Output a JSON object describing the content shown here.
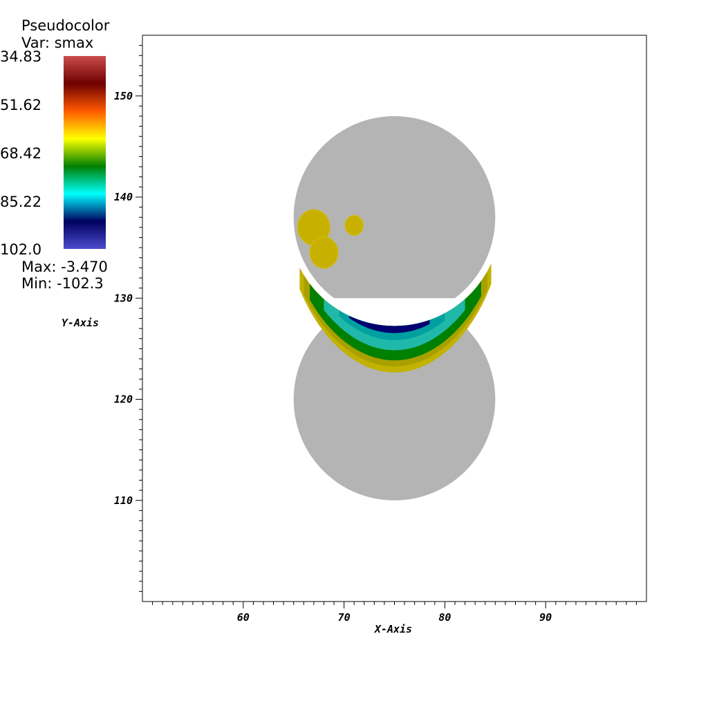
{
  "legend": {
    "title": "Pseudocolor",
    "var_label": "Var: smax",
    "max_label": "Max: -3.470",
    "min_label": "Min: -102.3",
    "tick_labels": [
      "34.83",
      "51.62",
      "68.42",
      "85.22",
      "102.0"
    ],
    "colormap": [
      "#cc4c4c",
      "#6e0000",
      "#ff5a00",
      "#ffff00",
      "#008000",
      "#00ffff",
      "#000060",
      "#4c4ccc"
    ]
  },
  "chart_data": {
    "type": "heatmap",
    "xlabel": "X-Axis",
    "ylabel": "Y-Axis",
    "xlim": [
      50,
      100
    ],
    "ylim": [
      100,
      156
    ],
    "x_ticks": [
      60,
      70,
      80,
      90
    ],
    "y_ticks": [
      110,
      120,
      130,
      140,
      150
    ],
    "x_tick_labels": [
      "60",
      "70",
      "80",
      "90"
    ],
    "y_tick_labels": [
      "110",
      "120",
      "130",
      "140",
      "150"
    ],
    "grid": false,
    "mesh_color": "#b4b4b4",
    "upper_disk": {
      "center": [
        75,
        138
      ],
      "radius": 10
    },
    "lower_arc": {
      "center": [
        75,
        120
      ],
      "radius": 10,
      "y_top": 130
    },
    "upper_hotspots": [
      {
        "center": [
          67,
          137
        ],
        "radius": 1.6,
        "value": -40
      },
      {
        "center": [
          68,
          134.5
        ],
        "radius": 1.4,
        "value": -40
      },
      {
        "center": [
          71,
          137.2
        ],
        "radius": 0.9,
        "value": -40
      }
    ],
    "lower_band_value_range": [
      -102.3,
      -3.47
    ]
  }
}
